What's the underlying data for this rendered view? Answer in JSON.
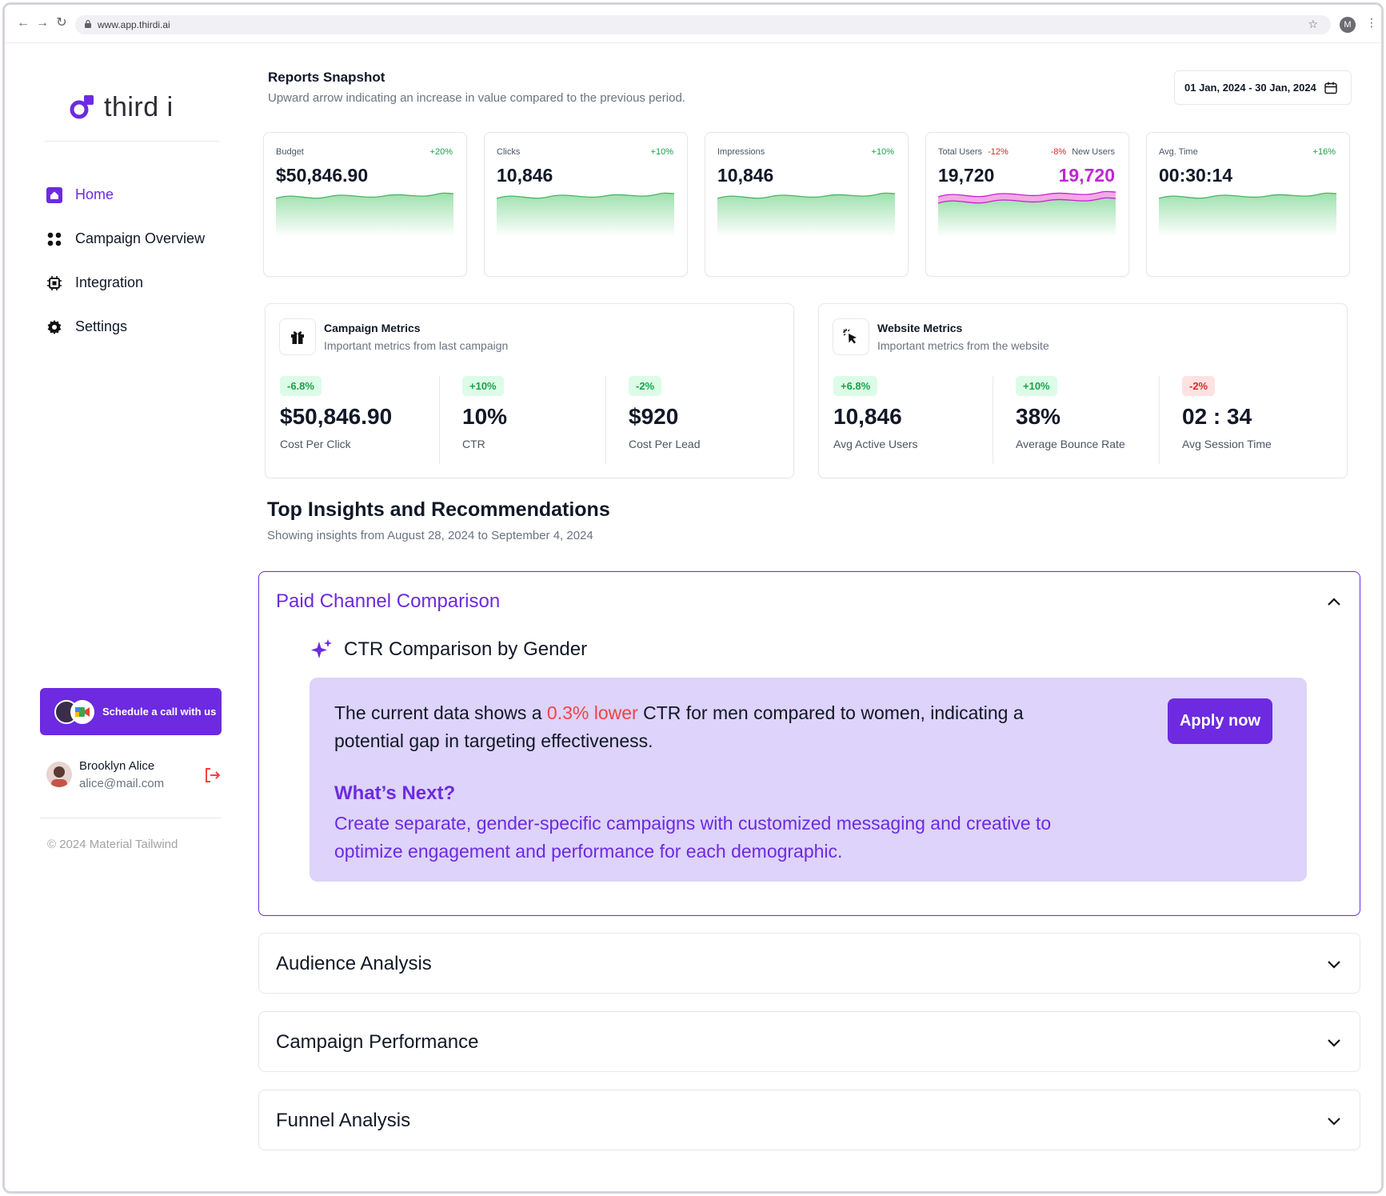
{
  "browser": {
    "url": "www.app.thirdi.ai",
    "profile_initial": "M"
  },
  "brand": {
    "name": "third i",
    "accent": "#6d2ae0"
  },
  "sidebar": {
    "items": [
      {
        "label": "Home",
        "icon": "home-icon",
        "active": true
      },
      {
        "label": "Campaign Overview",
        "icon": "grid-icon",
        "active": false
      },
      {
        "label": "Integration",
        "icon": "chip-icon",
        "active": false
      },
      {
        "label": "Settings",
        "icon": "gear-icon",
        "active": false
      }
    ],
    "schedule_label": "Schedule a call with us",
    "user": {
      "name": "Brooklyn Alice",
      "email": "alice@mail.com"
    },
    "copyright": "© 2024 Material Tailwind"
  },
  "header": {
    "title": "Reports Snapshot",
    "subtitle": "Upward arrow indicating an increase in value compared to the previous period.",
    "date_range": "01 Jan, 2024 - 30 Jan, 2024"
  },
  "stats": [
    {
      "label": "Budget",
      "change": "+20%",
      "value": "$50,846.90"
    },
    {
      "label": "Clicks",
      "change": "+10%",
      "value": "10,846"
    },
    {
      "label": "Impressions",
      "change": "+10%",
      "value": "10,846"
    },
    {
      "label": "Total Users",
      "change": "-12%",
      "value": "19,720",
      "secondary_label": "New Users",
      "secondary_change": "-8%",
      "secondary_value": "19,720"
    },
    {
      "label": "Avg. Time",
      "change": "+16%",
      "value": "00:30:14"
    }
  ],
  "campaign_metrics": {
    "title": "Campaign Metrics",
    "subtitle": "Important metrics from last campaign",
    "items": [
      {
        "change": "-6.8%",
        "value": "$50,846.90",
        "label": "Cost Per Click"
      },
      {
        "change": "+10%",
        "value": "10%",
        "label": "CTR"
      },
      {
        "change": "-2%",
        "value": "$920",
        "label": "Cost Per Lead"
      }
    ]
  },
  "website_metrics": {
    "title": "Website Metrics",
    "subtitle": "Important metrics from the website",
    "items": [
      {
        "change": "+6.8%",
        "value": "10,846",
        "label": "Avg Active Users"
      },
      {
        "change": "+10%",
        "value": "38%",
        "label": "Average Bounce Rate"
      },
      {
        "change": "-2%",
        "value": "02 : 34",
        "label": "Avg Session Time"
      }
    ]
  },
  "insights": {
    "title": "Top Insights and Recommendations",
    "subtitle": "Showing insights from August 28, 2024 to September 4, 2024",
    "open_section": {
      "title": "Paid Channel Comparison",
      "heading": "CTR Comparison by Gender",
      "text_before": "The current data shows a ",
      "highlight": "0.3% lower",
      "text_after": " CTR for men compared to women, indicating a potential gap in targeting effectiveness.",
      "apply_label": "Apply now",
      "next_title": "What’s Next?",
      "next_text": "Create separate, gender-specific campaigns with customized messaging and creative to optimize engagement and performance for each demographic."
    },
    "sections": [
      {
        "title": "Audience Analysis"
      },
      {
        "title": "Campaign Performance"
      },
      {
        "title": "Funnel Analysis"
      }
    ]
  }
}
